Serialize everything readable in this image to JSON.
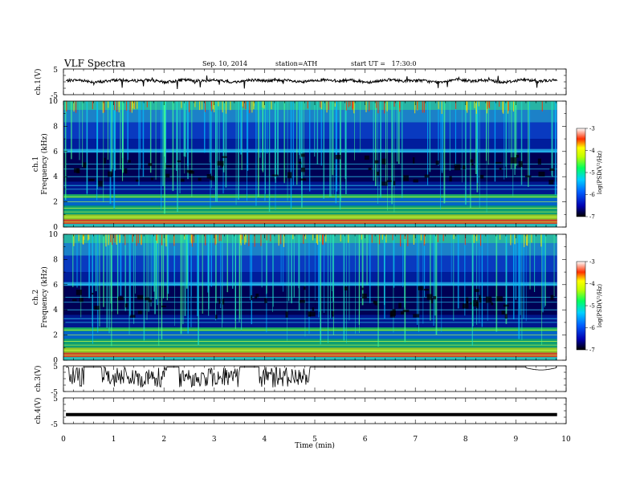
{
  "header": {
    "title": "VLF Spectra",
    "date": "Sep. 10, 2014",
    "station": "station=ATH",
    "start": "start UT =   17:30:0"
  },
  "chart_data": [
    {
      "type": "line",
      "panel": "ch1",
      "ylabel": "ch.1(V)",
      "ylim": [
        -5,
        5
      ],
      "yticks": [
        "5",
        "-5"
      ],
      "description_series_level": 0.3
    },
    {
      "type": "heatmap",
      "panel": "ch1-spectrogram",
      "ylabel_top": "ch.1",
      "ylabel": "Frequency (kHz)",
      "ylim": [
        0,
        10
      ],
      "yticks": [
        "0",
        "2",
        "4",
        "6",
        "8",
        "10"
      ],
      "colorbar": {
        "label": "log(PSD(V²/Hz)",
        "range": [
          -7,
          -3
        ],
        "ticks": [
          "-3",
          "-4",
          "-5",
          "-6",
          "-7"
        ]
      }
    },
    {
      "type": "heatmap",
      "panel": "ch2-spectrogram",
      "ylabel_top": "ch.2",
      "ylabel": "Frequency (kHz)",
      "ylim": [
        0,
        10
      ],
      "yticks": [
        "0",
        "2",
        "4",
        "6",
        "8",
        "10"
      ],
      "colorbar": {
        "label": "log(PSD(V²/Hz)",
        "range": [
          -7,
          -3
        ],
        "ticks": [
          "-3",
          "-4",
          "-5",
          "-6",
          "-7"
        ]
      }
    },
    {
      "type": "line",
      "panel": "ch3",
      "ylabel": "ch.3(V)",
      "ylim": [
        -5,
        5
      ],
      "yticks": [
        "5",
        "-5"
      ]
    },
    {
      "type": "line",
      "panel": "ch4",
      "ylabel": "ch.4(V)",
      "ylim": [
        -5,
        5
      ],
      "yticks": [
        "5",
        "-5"
      ],
      "level": -1.5
    }
  ],
  "xaxis": {
    "label": "Time (min)",
    "xlim": [
      0,
      10
    ],
    "ticks": [
      "0",
      "1",
      "2",
      "3",
      "4",
      "5",
      "6",
      "7",
      "8",
      "9",
      "10"
    ]
  }
}
